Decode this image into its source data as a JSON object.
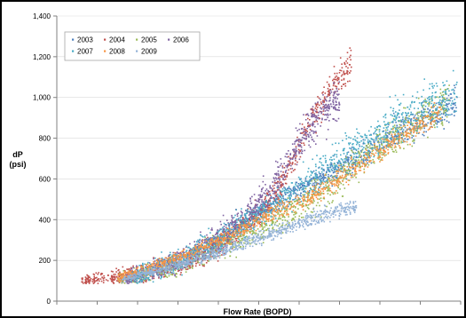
{
  "chart_data": {
    "type": "scatter",
    "title": "",
    "xlabel": "Flow Rate (BOPD)",
    "ylabel_lines": [
      "dP",
      "(psi)"
    ],
    "xlim": [
      0,
      10000
    ],
    "ylim": [
      0,
      1400
    ],
    "y_ticks": [
      0,
      200,
      400,
      600,
      800,
      1000,
      1200,
      1400
    ],
    "y_tick_labels": [
      "0",
      "200",
      "400",
      "600",
      "800",
      "1,000",
      "1,200",
      "1,400"
    ],
    "x_ticks": [
      0,
      1000,
      2000,
      3000,
      4000,
      5000,
      6000,
      7000,
      8000,
      9000,
      10000
    ],
    "x_tick_labels_visible": false,
    "grid": "horizontal",
    "legend_position": "top-left",
    "series": [
      {
        "name": "2003",
        "color": "#4f81bd",
        "trend": [
          [
            3800,
            280
          ],
          [
            5200,
            470
          ],
          [
            6500,
            600
          ],
          [
            7600,
            730
          ],
          [
            8400,
            830
          ],
          [
            9200,
            900
          ],
          [
            9900,
            980
          ]
        ],
        "spread": 70,
        "count": 900
      },
      {
        "name": "2004",
        "color": "#c0504d",
        "trend": [
          [
            600,
            100
          ],
          [
            2000,
            135
          ],
          [
            3200,
            190
          ],
          [
            4200,
            300
          ],
          [
            5000,
            430
          ],
          [
            5700,
            640
          ],
          [
            6200,
            860
          ],
          [
            6800,
            1060
          ],
          [
            7300,
            1180
          ]
        ],
        "spread": 70,
        "count": 950
      },
      {
        "name": "2005",
        "color": "#9bbb59",
        "trend": [
          [
            1500,
            110
          ],
          [
            2800,
            170
          ],
          [
            4200,
            290
          ],
          [
            5500,
            410
          ],
          [
            6700,
            560
          ],
          [
            7700,
            720
          ],
          [
            8800,
            880
          ],
          [
            9700,
            990
          ]
        ],
        "spread": 90,
        "count": 1000
      },
      {
        "name": "2006",
        "color": "#8064a2",
        "trend": [
          [
            1700,
            110
          ],
          [
            3000,
            200
          ],
          [
            4200,
            340
          ],
          [
            5000,
            480
          ],
          [
            5600,
            640
          ],
          [
            6100,
            820
          ],
          [
            6600,
            940
          ],
          [
            7000,
            1000
          ]
        ],
        "spread": 90,
        "count": 1000
      },
      {
        "name": "2007",
        "color": "#4bacc6",
        "trend": [
          [
            1800,
            110
          ],
          [
            3200,
            220
          ],
          [
            4400,
            360
          ],
          [
            5500,
            490
          ],
          [
            6400,
            620
          ],
          [
            7300,
            740
          ],
          [
            8300,
            870
          ],
          [
            9300,
            980
          ],
          [
            9900,
            1010
          ]
        ],
        "spread": 100,
        "count": 1100
      },
      {
        "name": "2008",
        "color": "#f79646",
        "trend": [
          [
            1500,
            120
          ],
          [
            2800,
            200
          ],
          [
            4000,
            300
          ],
          [
            5200,
            420
          ],
          [
            6300,
            520
          ],
          [
            7200,
            630
          ],
          [
            8000,
            740
          ],
          [
            8800,
            850
          ],
          [
            9500,
            930
          ]
        ],
        "spread": 50,
        "count": 900
      },
      {
        "name": "2009",
        "color": "#95b3d7",
        "trend": [
          [
            1600,
            110
          ],
          [
            2800,
            170
          ],
          [
            3800,
            230
          ],
          [
            4800,
            300
          ],
          [
            5800,
            370
          ],
          [
            6600,
            430
          ],
          [
            7400,
            470
          ]
        ],
        "spread": 35,
        "count": 800
      }
    ]
  }
}
